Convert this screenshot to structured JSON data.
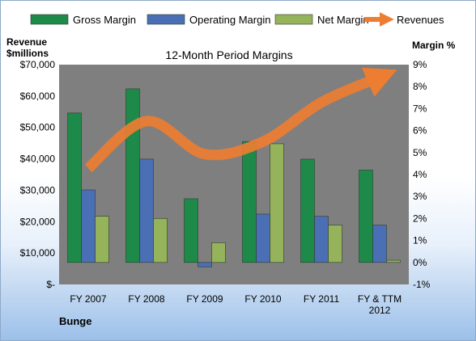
{
  "chart_data": {
    "type": "bar",
    "title": "12-Month Period Margins",
    "categories": [
      "FY 2007",
      "FY 2008",
      "FY 2009",
      "FY 2010",
      "FY 2011",
      "FY & TTM 2012"
    ],
    "series": [
      {
        "name": "Gross Margin",
        "axis": "right",
        "kind": "bar",
        "color": "#1e8a4a",
        "values": [
          6.8,
          7.9,
          2.9,
          5.5,
          4.7,
          4.2
        ]
      },
      {
        "name": "Operating Margin",
        "axis": "right",
        "kind": "bar",
        "color": "#4a6fb5",
        "values": [
          3.3,
          4.7,
          -0.2,
          2.2,
          2.1,
          1.7
        ]
      },
      {
        "name": "Net Margin",
        "axis": "right",
        "kind": "bar",
        "color": "#94b35a",
        "values": [
          2.1,
          2.0,
          0.9,
          5.4,
          1.7,
          0.1
        ]
      },
      {
        "name": "Revenues",
        "axis": "left",
        "kind": "line",
        "color": "#ed7d31",
        "values": [
          37000,
          52000,
          41500,
          45500,
          58000,
          66000
        ]
      }
    ],
    "y_left": {
      "label_line1": "Revenue",
      "label_line2": "$millions",
      "ylim": [
        0,
        70000
      ],
      "ticks": [
        0,
        10000,
        20000,
        30000,
        40000,
        50000,
        60000,
        70000
      ],
      "tick_labels": [
        "$-",
        "$10,000",
        "$20,000",
        "$30,000",
        "$40,000",
        "$50,000",
        "$60,000",
        "$70,000"
      ]
    },
    "y_right": {
      "label": "Margin %",
      "ylim": [
        -1,
        9
      ],
      "ticks": [
        -1,
        0,
        1,
        2,
        3,
        4,
        5,
        6,
        7,
        8,
        9
      ],
      "tick_labels": [
        "-1%",
        "0%",
        "1%",
        "2%",
        "3%",
        "4%",
        "5%",
        "6%",
        "7%",
        "8%",
        "9%"
      ]
    },
    "legend_position": "top",
    "grid": false
  },
  "company": "Bunge"
}
